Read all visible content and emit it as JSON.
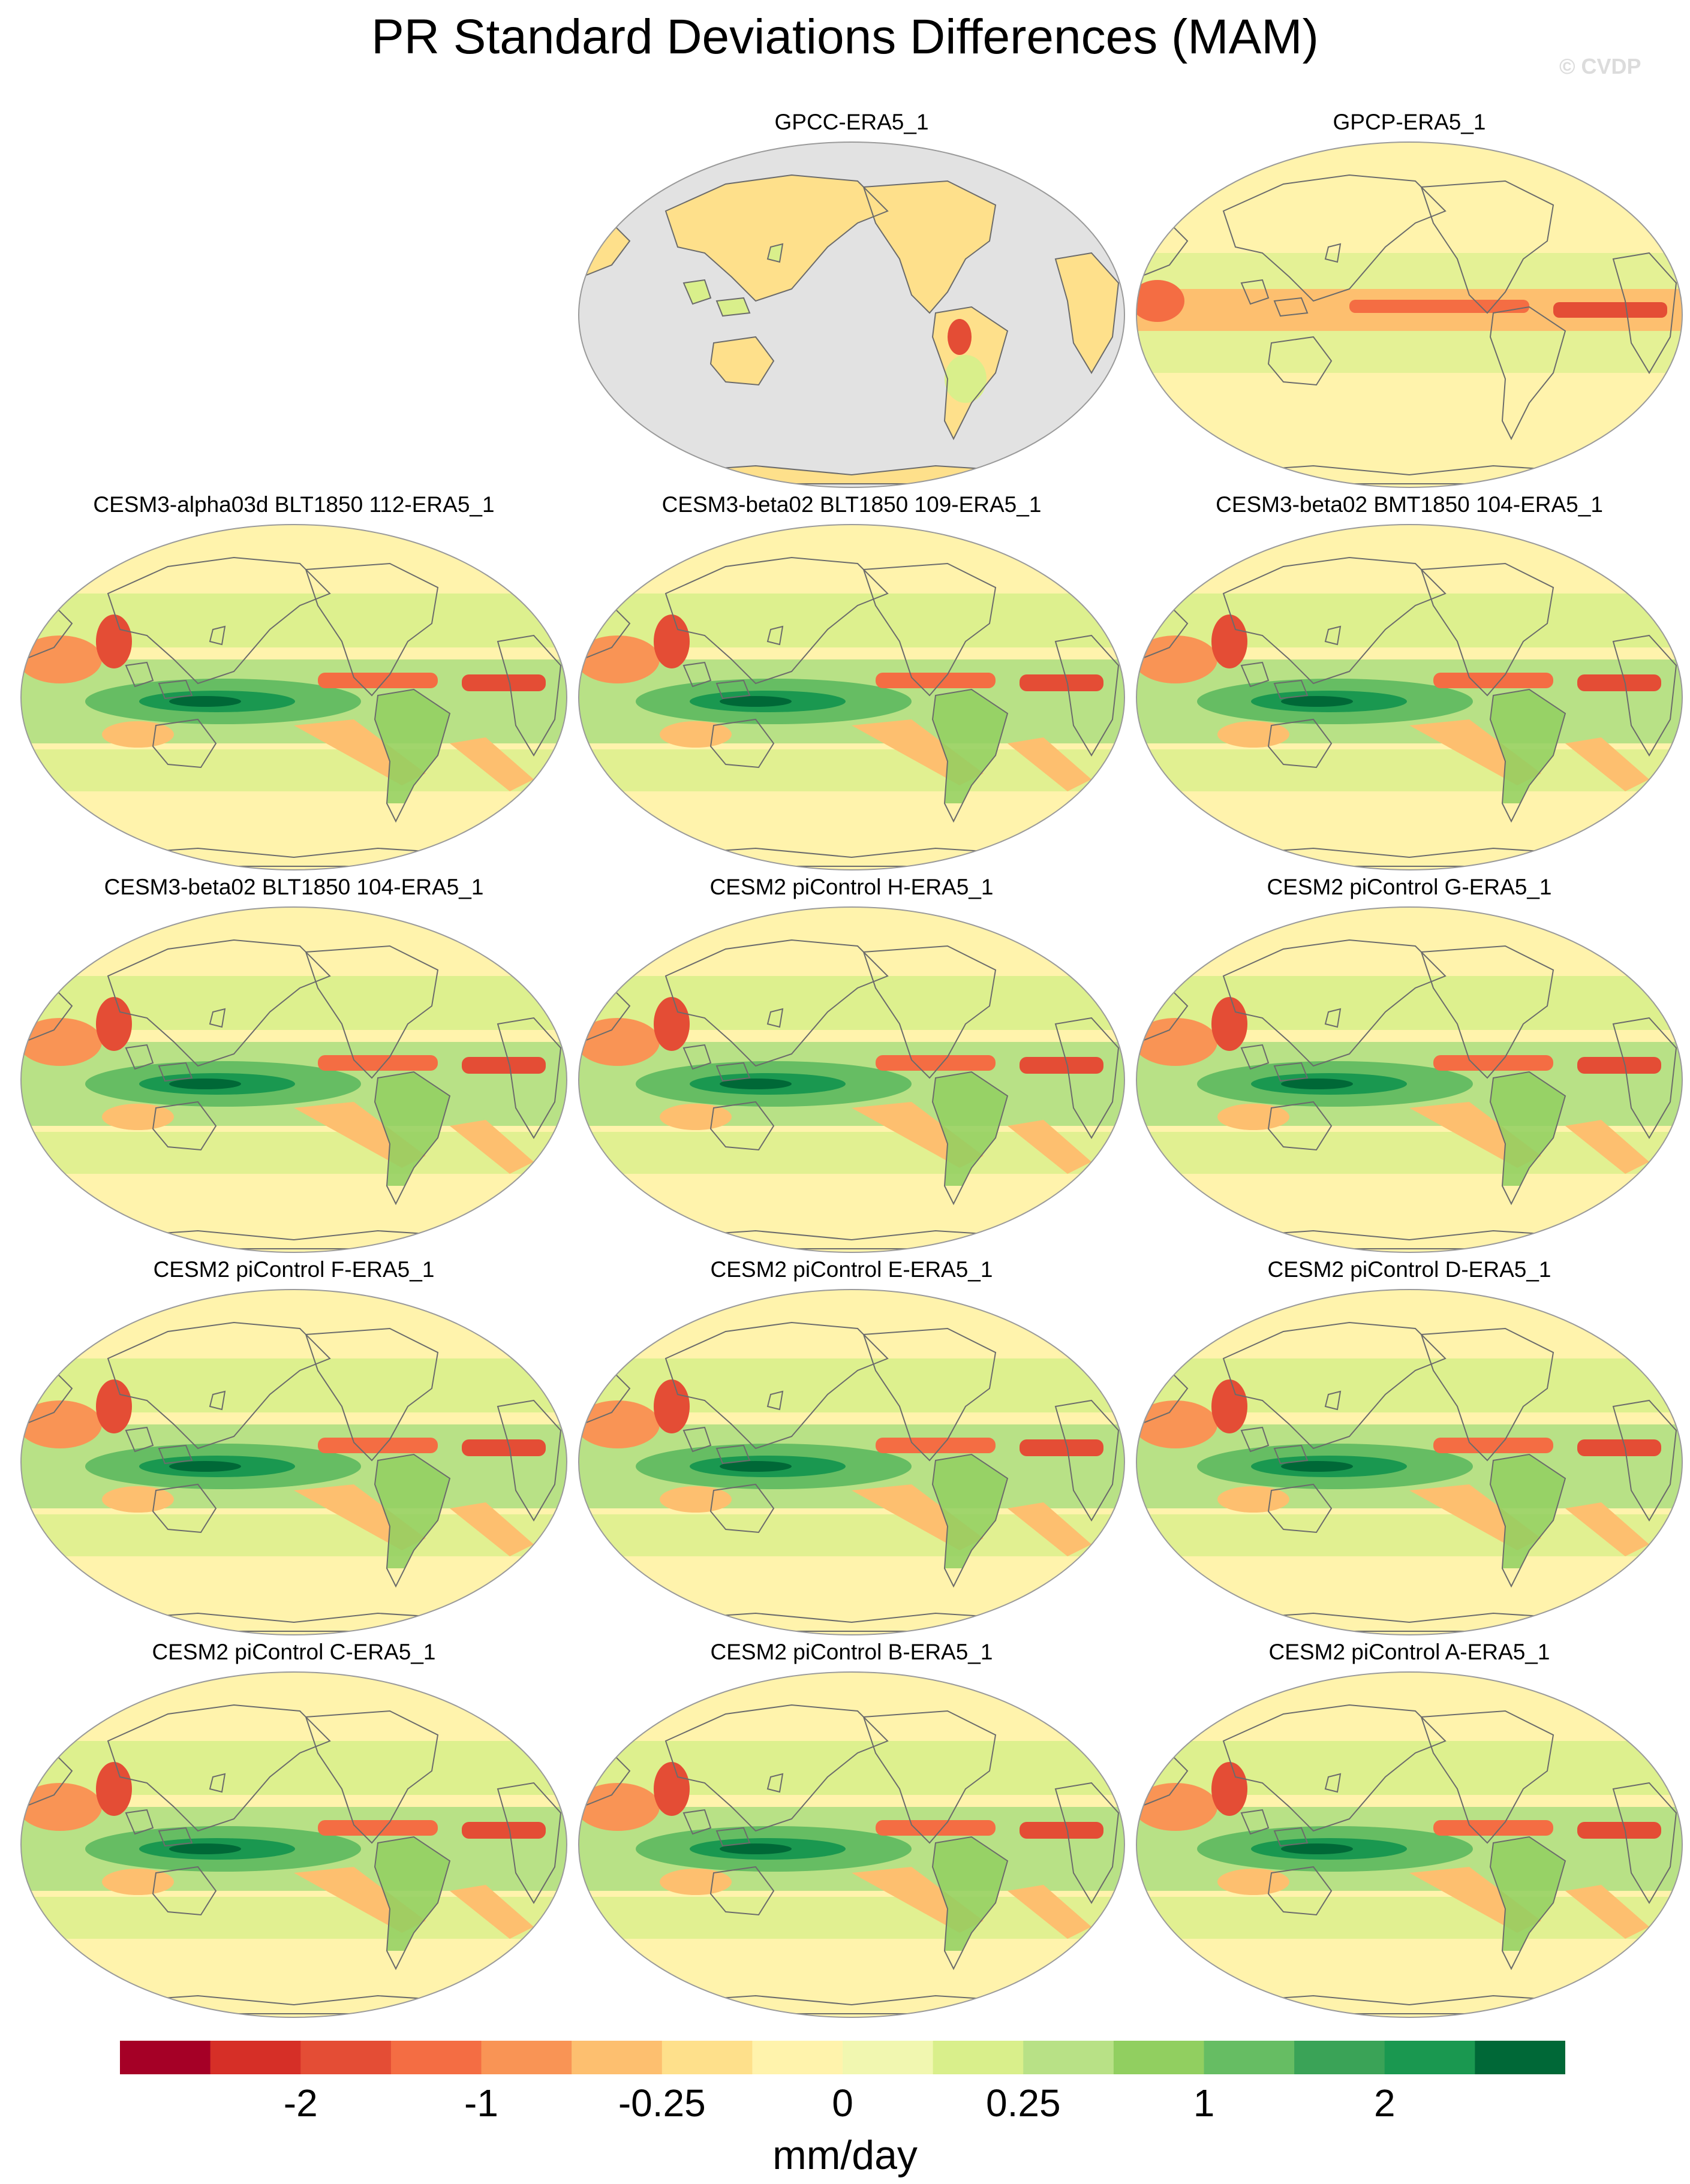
{
  "title": "PR Standard Deviations Differences (MAM)",
  "watermark": "© CVDP",
  "panels": [
    {
      "label": "GPCC-ERA5_1",
      "kind": "land_only"
    },
    {
      "label": "GPCP-ERA5_1",
      "kind": "obs"
    },
    {
      "label": "CESM3-alpha03d BLT1850 112-ERA5_1",
      "kind": "model"
    },
    {
      "label": "CESM3-beta02 BLT1850 109-ERA5_1",
      "kind": "model"
    },
    {
      "label": "CESM3-beta02 BMT1850 104-ERA5_1",
      "kind": "model"
    },
    {
      "label": "CESM3-beta02 BLT1850 104-ERA5_1",
      "kind": "model"
    },
    {
      "label": "CESM2 piControl H-ERA5_1",
      "kind": "model"
    },
    {
      "label": "CESM2 piControl G-ERA5_1",
      "kind": "model"
    },
    {
      "label": "CESM2 piControl F-ERA5_1",
      "kind": "model"
    },
    {
      "label": "CESM2 piControl E-ERA5_1",
      "kind": "model"
    },
    {
      "label": "CESM2 piControl D-ERA5_1",
      "kind": "model"
    },
    {
      "label": "CESM2 piControl C-ERA5_1",
      "kind": "model"
    },
    {
      "label": "CESM2 piControl B-ERA5_1",
      "kind": "model"
    },
    {
      "label": "CESM2 piControl A-ERA5_1",
      "kind": "model"
    }
  ],
  "colorbar": {
    "units": "mm/day",
    "colors": [
      "#a50026",
      "#d62f27",
      "#e44d35",
      "#f46d43",
      "#f99455",
      "#fdbf6f",
      "#fee08b",
      "#fff3ac",
      "#f1f7b0",
      "#d9ef8b",
      "#b8e186",
      "#91cf60",
      "#66bd63",
      "#3aa357",
      "#1a9850",
      "#006837"
    ],
    "tick_labels": [
      {
        "boundary": 2,
        "label": "-2"
      },
      {
        "boundary": 4,
        "label": "-1"
      },
      {
        "boundary": 6,
        "label": "-0.25"
      },
      {
        "boundary": 8,
        "label": "0"
      },
      {
        "boundary": 10,
        "label": "0.25"
      },
      {
        "boundary": 12,
        "label": "1"
      },
      {
        "boundary": 14,
        "label": "2"
      }
    ]
  },
  "land_mask_color": "#e2e2e2"
}
